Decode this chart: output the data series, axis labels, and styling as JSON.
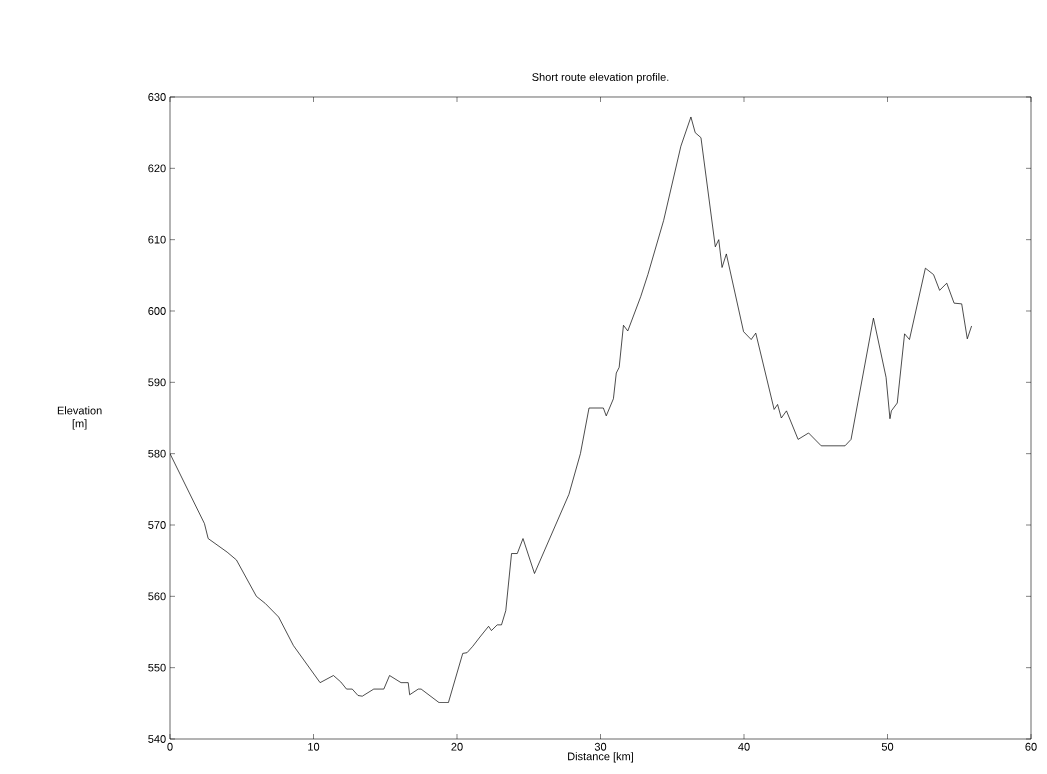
{
  "chart_data": {
    "type": "line",
    "title": "Short route elevation profile.",
    "xlabel": "Distance [km]",
    "ylabel": "Elevation [m]",
    "xlim": [
      0,
      60
    ],
    "ylim": [
      540,
      630
    ],
    "xticks": [
      0,
      10,
      20,
      30,
      40,
      50,
      60
    ],
    "yticks": [
      540,
      550,
      560,
      570,
      580,
      590,
      600,
      610,
      620,
      630
    ],
    "grid": false,
    "marker": "none",
    "line_style": "solid",
    "series": [
      {
        "color": "#000000",
        "x": [
          0,
          2.4,
          2.66,
          3.98,
          4.63,
          6.02,
          6.64,
          7.57,
          8.6,
          10.46,
          11.39,
          11.9,
          12.3,
          12.7,
          13.1,
          13.4,
          14.2,
          14.9,
          15.3,
          16.1,
          16.6,
          16.7,
          17.3,
          17.5,
          18.75,
          19.4,
          20.4,
          20.7,
          21.1,
          21.6,
          22.2,
          22.4,
          22.8,
          23.1,
          23.4,
          23.8,
          24.2,
          24.6,
          25.4,
          27.8,
          28.6,
          29.2,
          30.2,
          30.4,
          30.9,
          31.1,
          31.3,
          31.6,
          31.9,
          32.8,
          33.3,
          34.4,
          35.6,
          36.3,
          36.6,
          37.0,
          38.0,
          38.24,
          38.47,
          38.77,
          39.97,
          40.5,
          40.82,
          42.1,
          42.34,
          42.6,
          42.96,
          43.77,
          44.5,
          45.38,
          47.04,
          47.46,
          49.02,
          49.9,
          50.17,
          50.27,
          50.68,
          51.19,
          51.53,
          52.64,
          53.21,
          53.63,
          54.13,
          54.64,
          55.17,
          55.56,
          55.86
        ],
        "values": [
          580,
          570.2,
          568.1,
          566.2,
          565.1,
          560,
          559,
          557.1,
          553.1,
          547.9,
          548.9,
          548,
          547,
          547,
          546.1,
          546,
          547,
          547,
          548.9,
          547.9,
          547.9,
          546.2,
          547,
          547,
          545.1,
          545.1,
          552,
          552.1,
          553,
          554.3,
          555.8,
          555.2,
          556,
          556,
          558,
          566,
          566,
          568.1,
          563.2,
          574.3,
          580,
          586.4,
          586.4,
          585.3,
          587.7,
          591.3,
          592.1,
          598,
          597.2,
          602,
          605.1,
          612.7,
          623.1,
          627.2,
          625,
          624.3,
          609,
          610,
          606.1,
          608,
          597.1,
          596,
          596.9,
          586.2,
          586.9,
          585,
          586,
          582,
          582.9,
          581.1,
          581.1,
          582,
          599,
          590.7,
          584.9,
          586,
          587.1,
          596.8,
          596,
          606,
          605.1,
          602.9,
          603.9,
          601.1,
          601,
          596.1,
          597.9
        ]
      }
    ]
  }
}
